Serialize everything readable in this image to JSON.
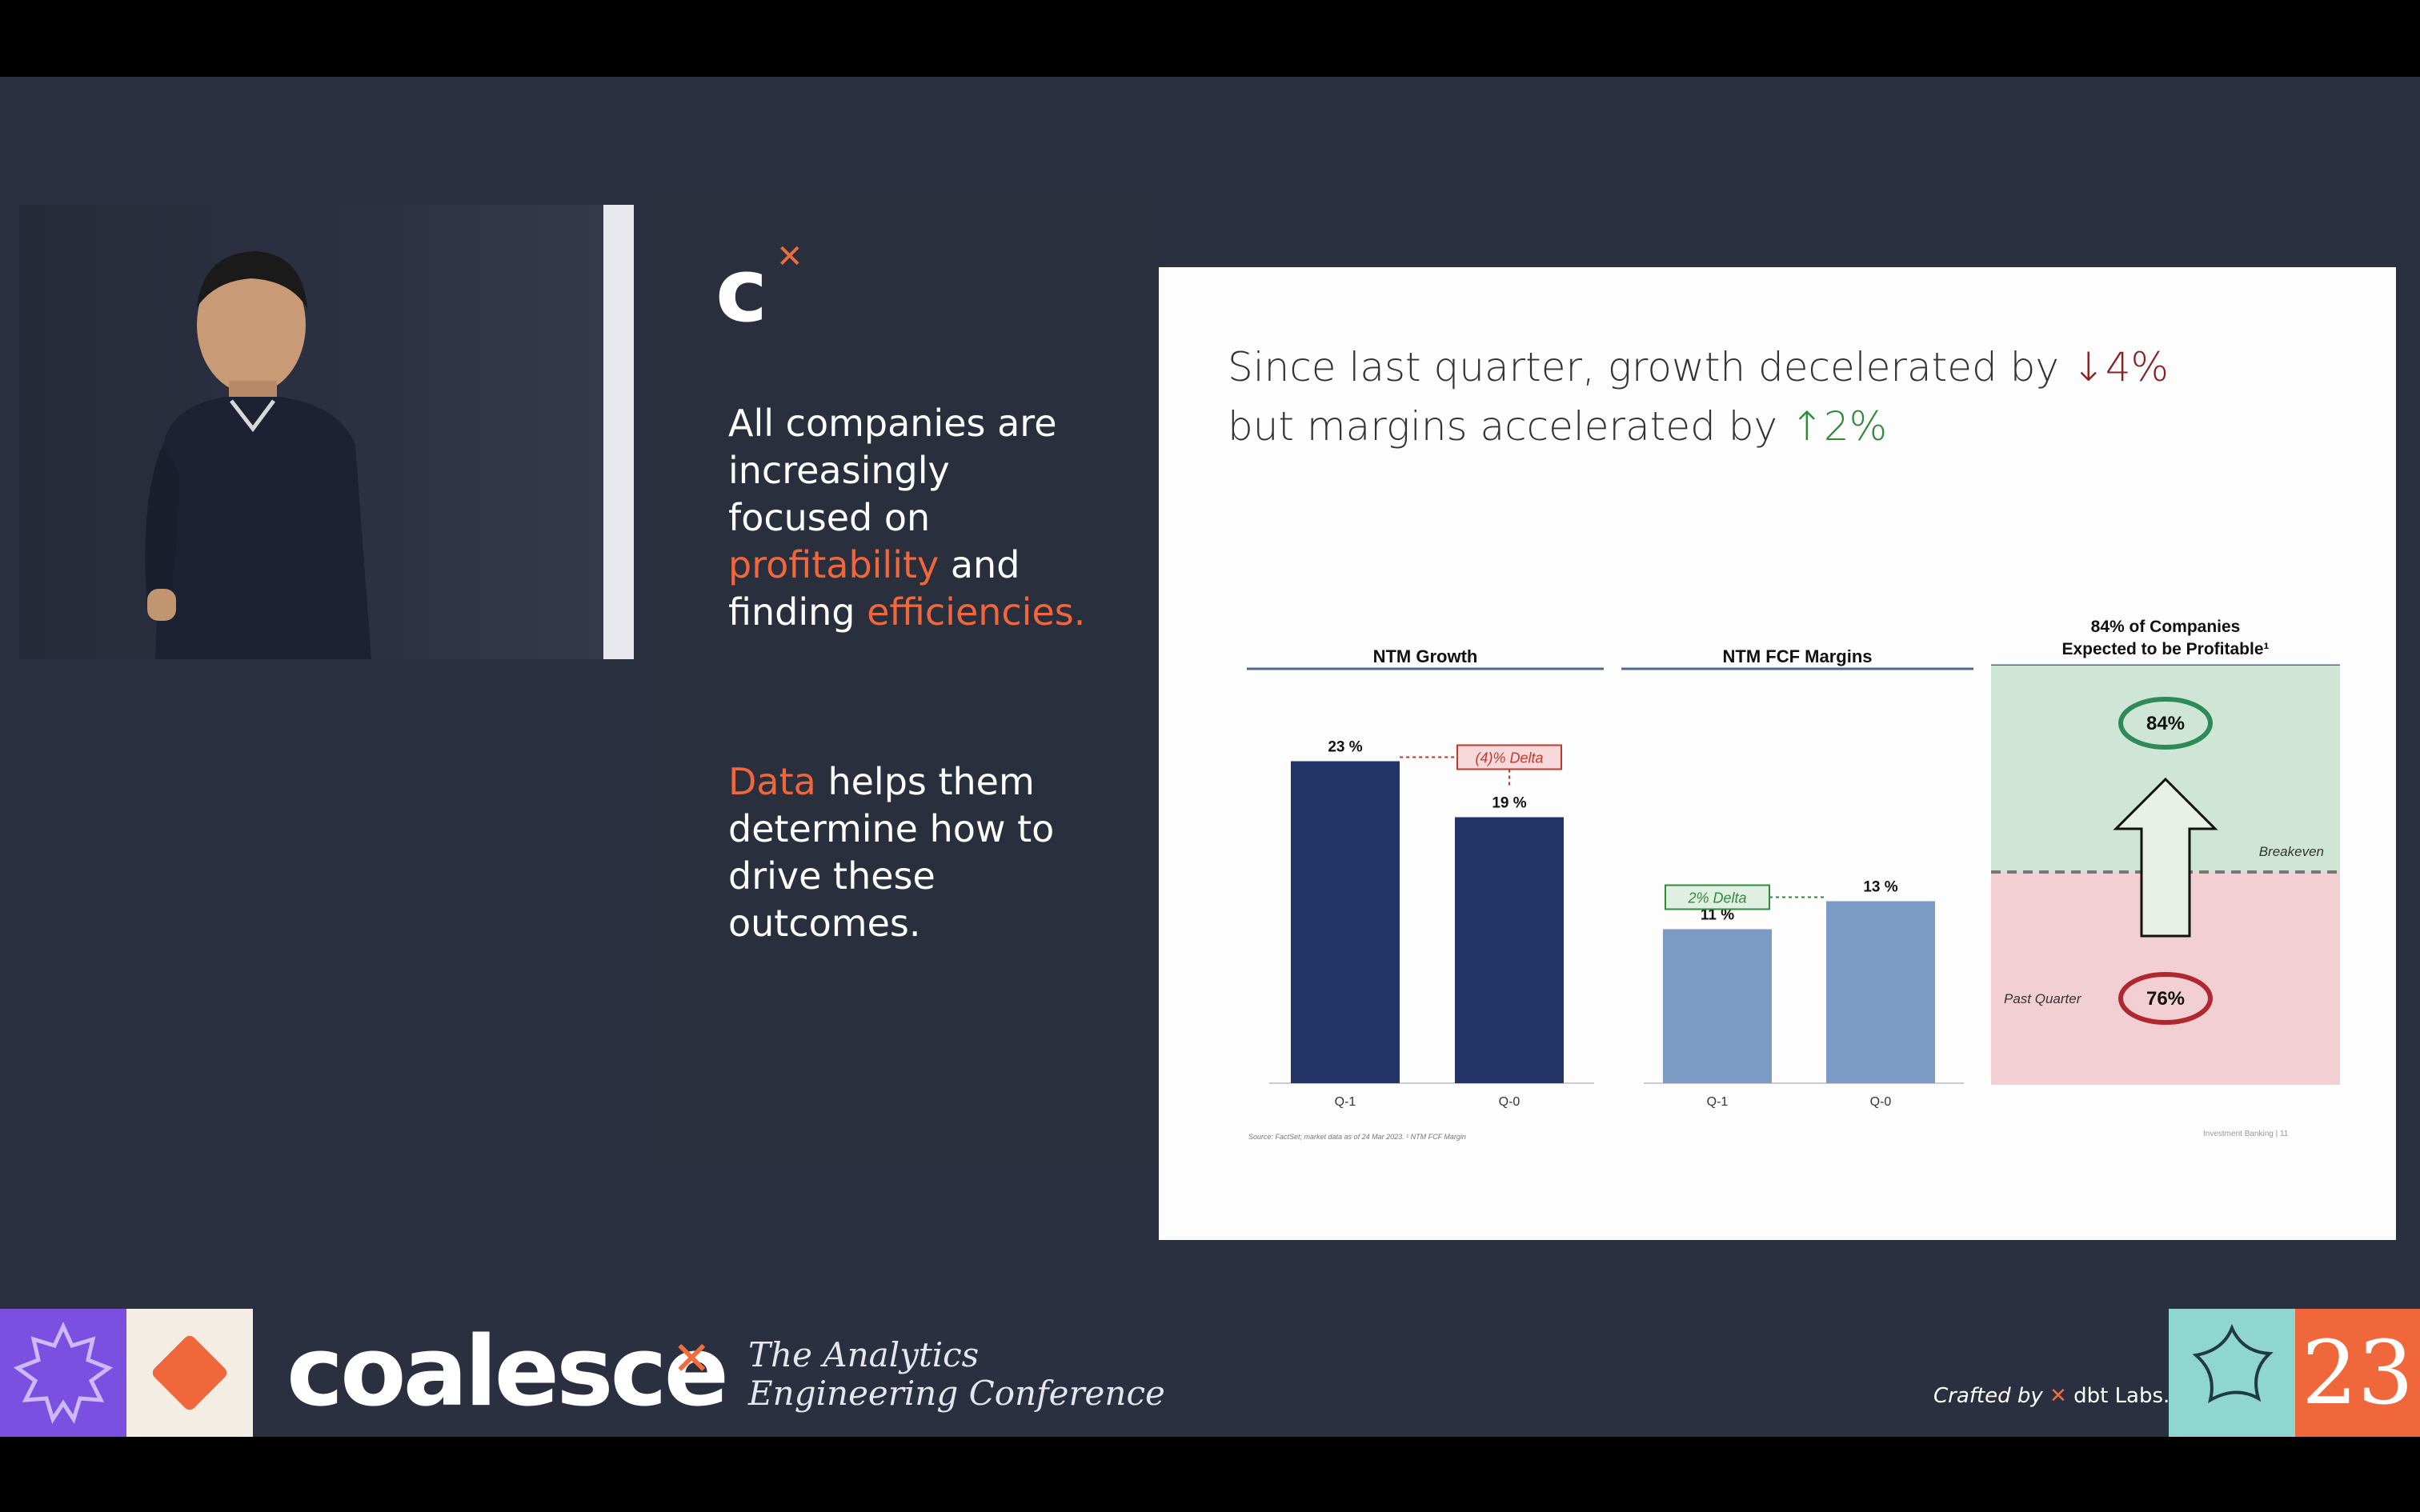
{
  "panel": {
    "logo": "c",
    "claim_line1": "All companies are",
    "claim_line2": "increasingly",
    "claim_line3": "focused on",
    "claim_profitability": "profitability",
    "claim_and": " and",
    "claim_finding": "finding ",
    "claim_efficiencies": "efficiencies.",
    "data_word": "Data",
    "data_rest1": " helps them",
    "data_line2": "determine how to",
    "data_line3": "drive these",
    "data_line4": "outcomes."
  },
  "slide": {
    "headline_1": "Since last quarter, growth decelerated by ",
    "headline_1_delta": "↓4%",
    "headline_2": "but margins accelerated by ",
    "headline_2_delta": "↑2%",
    "source_note": "Source: FactSet; market data as of 24 Mar 2023. ¹ NTM FCF Margin",
    "page_label": "Investment Banking | 11"
  },
  "chart_data": [
    {
      "type": "bar",
      "title": "NTM Growth",
      "categories": [
        "Q-1",
        "Q-0"
      ],
      "values": [
        23,
        19
      ],
      "data_labels": [
        "23 %",
        "19 %"
      ],
      "annotation": "(4)% Delta",
      "color": "#233466",
      "annotation_color": "#c0392b"
    },
    {
      "type": "bar",
      "title": "NTM FCF Margins",
      "categories": [
        "Q-1",
        "Q-0"
      ],
      "values": [
        11,
        13
      ],
      "data_labels": [
        "11 %",
        "13 %"
      ],
      "annotation": "2% Delta",
      "color": "#7c9bc4",
      "annotation_color": "#2f8a3a"
    },
    {
      "type": "bar",
      "title_line1": "84% of Companies",
      "title_line2": "Expected to be Profitable¹",
      "current_label": "84%",
      "current_value": 84,
      "past_label": "76%",
      "past_value": 76,
      "past_caption": "Past Quarter",
      "threshold_label": "Breakeven",
      "upper_color": "#cfe6d6",
      "lower_color": "#f2cfd2"
    }
  ],
  "banner": {
    "brand": "coalesce",
    "tagline_1": "The Analytics",
    "tagline_2": "Engineering Conference",
    "crafted_by": "Crafted by",
    "dbt_labs": "dbt Labs.",
    "year": "23"
  },
  "colors": {
    "accent": "#f0673c",
    "stage": "#2b3040",
    "purple_tile": "#7b4fe0",
    "teal_tile": "#8fd6d2"
  }
}
